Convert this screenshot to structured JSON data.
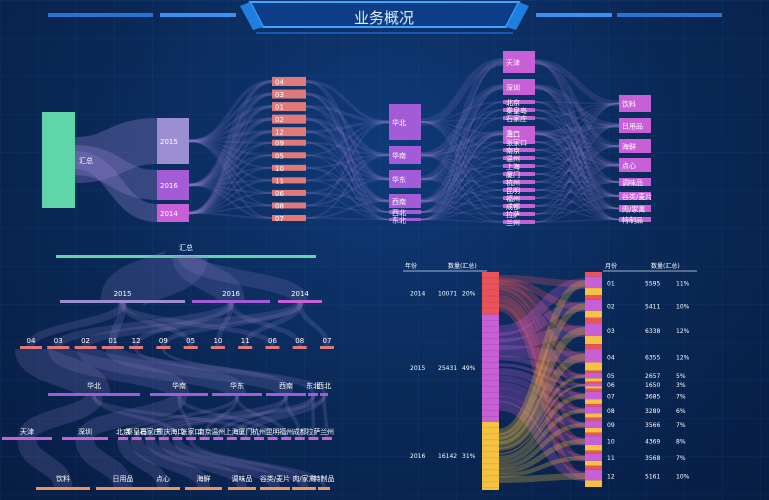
{
  "header": {
    "title": "业务概况"
  },
  "chart_data": [
    {
      "type": "sankey",
      "levels": [
        [
          "汇总"
        ],
        [
          "2015",
          "2016",
          "2014"
        ],
        [
          "04",
          "03",
          "01",
          "02",
          "12",
          "09",
          "05",
          "10",
          "11",
          "06",
          "08",
          "07"
        ],
        [
          "华北",
          "华南",
          "华东",
          "西南",
          "西北",
          "东北"
        ],
        [
          "天津",
          "深圳",
          "北京",
          "秦皇岛",
          "石家庄",
          "重庆",
          "海口",
          "张家口",
          "南京",
          "温州",
          "上海",
          "厦门",
          "杭州",
          "昆明",
          "福州",
          "成都",
          "拉萨",
          "兰州"
        ],
        [
          "饮料",
          "日用品",
          "海鲜",
          "点心",
          "调味品",
          "谷类/麦片",
          "肉/家禽",
          "特制品"
        ]
      ]
    },
    {
      "type": "tree",
      "root": "汇总",
      "levels": [
        [
          "2015",
          "2016",
          "2014"
        ],
        [
          "04",
          "03",
          "02",
          "01",
          "12",
          "09",
          "05",
          "10",
          "11",
          "06",
          "08",
          "07"
        ],
        [
          "华北",
          "华南",
          "华东",
          "西南",
          "东北",
          "西北"
        ],
        [
          "天津",
          "深圳",
          "北京",
          "秦皇岛",
          "石家庄",
          "重庆",
          "海口",
          "张家口",
          "南京",
          "温州",
          "上海",
          "厦门",
          "杭州",
          "昆明",
          "福州",
          "成都",
          "拉萨",
          "兰州"
        ],
        [
          "饮料",
          "日用品",
          "点心",
          "海鲜",
          "调味品",
          "谷类/麦片",
          "肉/家禽",
          "特制品"
        ]
      ]
    },
    {
      "type": "parallel",
      "left": {
        "headers": [
          "年份",
          "数量(汇总)"
        ],
        "rows": [
          {
            "label": "2014",
            "value": "10071",
            "pct": "20%",
            "num": 10071,
            "color": "#e8545a"
          },
          {
            "label": "2015",
            "value": "25431",
            "pct": "49%",
            "num": 25431,
            "color": "#c75fd6"
          },
          {
            "label": "2016",
            "value": "16142",
            "pct": "31%",
            "num": 16142,
            "color": "#f5c242"
          }
        ]
      },
      "right": {
        "headers": [
          "月份",
          "数量(汇总)"
        ],
        "rows": [
          {
            "label": "01",
            "value": "5595",
            "pct": "11%",
            "num": 5595
          },
          {
            "label": "02",
            "value": "5411",
            "pct": "10%",
            "num": 5411
          },
          {
            "label": "03",
            "value": "6338",
            "pct": "12%",
            "num": 6338
          },
          {
            "label": "04",
            "value": "6355",
            "pct": "12%",
            "num": 6355
          },
          {
            "label": "05",
            "value": "2657",
            "pct": "5%",
            "num": 2657
          },
          {
            "label": "06",
            "value": "1650",
            "pct": "3%",
            "num": 1650
          },
          {
            "label": "07",
            "value": "3685",
            "pct": "7%",
            "num": 3685
          },
          {
            "label": "08",
            "value": "3289",
            "pct": "6%",
            "num": 3289
          },
          {
            "label": "09",
            "value": "3566",
            "pct": "7%",
            "num": 3566
          },
          {
            "label": "10",
            "value": "4369",
            "pct": "8%",
            "num": 4369
          },
          {
            "label": "11",
            "value": "3568",
            "pct": "7%",
            "num": 3568
          },
          {
            "label": "12",
            "value": "5161",
            "pct": "10%",
            "num": 5161
          }
        ]
      }
    }
  ],
  "colors": {
    "teal": "#5fd6a9",
    "lavender": "#9c8fd1",
    "purple": "#a35bd8",
    "pink": "#c75fd6",
    "salmon": "#e07a7a",
    "orange": "#f0955a",
    "red": "#e8545a",
    "yellow": "#f5c242",
    "link": "#8a7cc6"
  }
}
